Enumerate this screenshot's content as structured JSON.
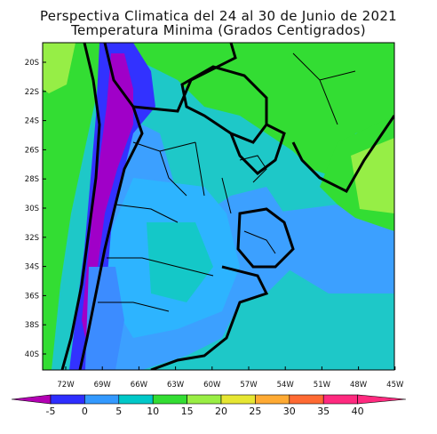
{
  "title": {
    "line1": "Perspectiva Climatica del 24 al 30 de Junio de 2021",
    "line2": "Temperatura Minima (Grados Centigrados)"
  },
  "lat_labels": [
    "20S",
    "22S",
    "24S",
    "26S",
    "28S",
    "30S",
    "32S",
    "34S",
    "36S",
    "38S",
    "40S"
  ],
  "lon_labels": [
    "72W",
    "69W",
    "66W",
    "63W",
    "60W",
    "57W",
    "54W",
    "51W",
    "48W",
    "45W"
  ],
  "colorbar": {
    "labels": [
      "-5",
      "0",
      "5",
      "10",
      "15",
      "20",
      "25",
      "30",
      "35",
      "40"
    ],
    "colors": [
      "#b300b3",
      "#2e2eff",
      "#3399ff",
      "#00c8c8",
      "#33dd33",
      "#99ee44",
      "#e6e632",
      "#ffaa33",
      "#ff6a33",
      "#ff2a7f"
    ]
  },
  "palette": {
    "purple": "#a000c8",
    "deep_blue": "#3232ff",
    "blue": "#3c8cff",
    "light_blue": "#2db4ff",
    "cyan": "#14c8c8",
    "green": "#32e632",
    "light_green": "#96ee46"
  }
}
